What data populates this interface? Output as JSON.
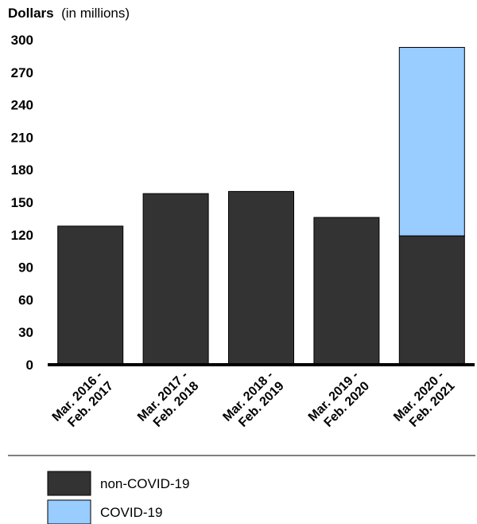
{
  "chart_data": {
    "type": "bar",
    "stacked": true,
    "ylabel": {
      "main": "Dollars",
      "unit": "(in millions)"
    },
    "ylim": [
      0,
      300
    ],
    "yticks": [
      0,
      30,
      60,
      90,
      120,
      150,
      180,
      210,
      240,
      270,
      300
    ],
    "categories": [
      [
        "Mar. 2016 -",
        "Feb. 2017"
      ],
      [
        "Mar. 2017 -",
        "Feb. 2018"
      ],
      [
        "Mar. 2018 -",
        "Feb. 2019"
      ],
      [
        "Mar. 2019 -",
        "Feb. 2020"
      ],
      [
        "Mar. 2020 -",
        "Feb. 2021"
      ]
    ],
    "series": [
      {
        "name": "non-COVID-19",
        "color": "#333333",
        "values": [
          128,
          158,
          160,
          136,
          119
        ]
      },
      {
        "name": "COVID-19",
        "color": "#99ccff",
        "values": [
          0,
          0,
          0,
          0,
          174
        ]
      }
    ],
    "legend_position": "bottom"
  }
}
